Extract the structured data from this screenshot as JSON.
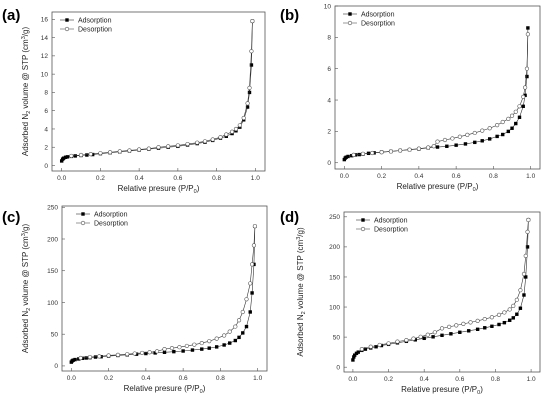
{
  "chart_data": [
    {
      "type": "scatter",
      "panel_label": "(a)",
      "xlabel_main": "Relative presure (P/P",
      "xlabel_sub": "0",
      "xlabel_end": ")",
      "ylabel_main": "Adsorbed N",
      "ylabel_sub": "2",
      "ylabel_mid": " volume @ STP (cm",
      "ylabel_sup": "3",
      "ylabel_end": "/g)",
      "xlim": [
        -0.05,
        1.05
      ],
      "ylim": [
        -0.6,
        16.8
      ],
      "xticks": [
        "0.0",
        "0.2",
        "0.4",
        "0.6",
        "0.8",
        "1.0"
      ],
      "xtick_values": [
        0,
        0.2,
        0.4,
        0.6,
        0.8,
        1.0
      ],
      "yticks": [
        "0",
        "2",
        "4",
        "6",
        "8",
        "10",
        "12",
        "14",
        "16"
      ],
      "ytick_values": [
        0,
        2,
        4,
        6,
        8,
        10,
        12,
        14,
        16
      ],
      "legend": "top-left",
      "series": [
        {
          "name": "Adsorption",
          "marker": "filled-square",
          "x": [
            0.0,
            0.005,
            0.01,
            0.02,
            0.03,
            0.05,
            0.07,
            0.1,
            0.13,
            0.16,
            0.2,
            0.25,
            0.3,
            0.35,
            0.4,
            0.45,
            0.5,
            0.55,
            0.6,
            0.65,
            0.7,
            0.74,
            0.78,
            0.82,
            0.85,
            0.88,
            0.9,
            0.92,
            0.94,
            0.96,
            0.97,
            0.98,
            0.985
          ],
          "y": [
            0.5,
            0.7,
            0.8,
            0.9,
            0.95,
            1.0,
            1.05,
            1.1,
            1.15,
            1.2,
            1.3,
            1.4,
            1.5,
            1.6,
            1.7,
            1.8,
            1.9,
            2.0,
            2.1,
            2.25,
            2.4,
            2.55,
            2.75,
            3.0,
            3.2,
            3.5,
            3.8,
            4.2,
            5.0,
            6.4,
            8.0,
            11.0,
            15.8
          ]
        },
        {
          "name": "Desorption",
          "marker": "open-circle",
          "x": [
            0.985,
            0.98,
            0.97,
            0.96,
            0.94,
            0.92,
            0.9,
            0.88,
            0.85,
            0.82,
            0.78,
            0.74,
            0.7,
            0.65,
            0.6,
            0.55,
            0.5,
            0.45,
            0.4,
            0.35,
            0.3,
            0.25,
            0.2,
            0.15,
            0.1,
            0.05
          ],
          "y": [
            15.8,
            12.5,
            8.5,
            6.8,
            5.2,
            4.4,
            4.0,
            3.7,
            3.4,
            3.1,
            2.85,
            2.65,
            2.5,
            2.35,
            2.2,
            2.1,
            2.0,
            1.85,
            1.75,
            1.65,
            1.55,
            1.45,
            1.35,
            1.25,
            1.15,
            1.05
          ]
        }
      ]
    },
    {
      "type": "scatter",
      "panel_label": "(b)",
      "xlabel_main": "Relative presure (P/P",
      "xlabel_sub": "0",
      "xlabel_end": ")",
      "ylabel_main": "",
      "ylabel_sub": "",
      "ylabel_mid": "",
      "ylabel_sup": "",
      "ylabel_end": "",
      "xlim": [
        -0.05,
        1.05
      ],
      "ylim": [
        -0.4,
        10.0
      ],
      "xticks": [
        "0.0",
        "0.2",
        "0.4",
        "0.6",
        "0.8",
        "1.0"
      ],
      "xtick_values": [
        0,
        0.2,
        0.4,
        0.6,
        0.8,
        1.0
      ],
      "yticks": [
        "0",
        "2",
        "4",
        "6",
        "8",
        "10"
      ],
      "ytick_values": [
        0,
        2,
        4,
        6,
        8,
        10
      ],
      "legend": "top-left",
      "series": [
        {
          "name": "Adsorption",
          "marker": "filled-square",
          "x": [
            0.0,
            0.005,
            0.01,
            0.02,
            0.04,
            0.06,
            0.08,
            0.1,
            0.13,
            0.16,
            0.2,
            0.25,
            0.3,
            0.35,
            0.4,
            0.45,
            0.5,
            0.55,
            0.6,
            0.65,
            0.7,
            0.74,
            0.78,
            0.82,
            0.85,
            0.88,
            0.9,
            0.92,
            0.94,
            0.96,
            0.97,
            0.98,
            0.985
          ],
          "y": [
            0.2,
            0.3,
            0.35,
            0.4,
            0.45,
            0.5,
            0.52,
            0.55,
            0.6,
            0.63,
            0.68,
            0.72,
            0.78,
            0.83,
            0.88,
            0.95,
            1.0,
            1.05,
            1.12,
            1.2,
            1.3,
            1.4,
            1.52,
            1.68,
            1.8,
            2.0,
            2.2,
            2.5,
            2.9,
            3.6,
            4.3,
            5.5,
            8.6
          ]
        },
        {
          "name": "Desorption",
          "marker": "open-circle",
          "x": [
            0.985,
            0.98,
            0.97,
            0.96,
            0.94,
            0.92,
            0.9,
            0.88,
            0.85,
            0.82,
            0.78,
            0.74,
            0.7,
            0.66,
            0.62,
            0.58,
            0.54,
            0.5,
            0.48,
            0.45,
            0.4,
            0.35,
            0.3,
            0.25,
            0.2,
            0.15,
            0.1,
            0.05
          ],
          "y": [
            8.2,
            6.0,
            4.8,
            4.2,
            3.6,
            3.25,
            3.0,
            2.8,
            2.6,
            2.4,
            2.2,
            2.05,
            1.9,
            1.78,
            1.66,
            1.55,
            1.45,
            1.35,
            1.05,
            0.97,
            0.9,
            0.84,
            0.78,
            0.72,
            0.67,
            0.62,
            0.57,
            0.5
          ]
        }
      ]
    },
    {
      "type": "scatter",
      "panel_label": "(c)",
      "xlabel_main": "Relative presure (P/P",
      "xlabel_sub": "0",
      "xlabel_end": ")",
      "ylabel_main": "Adsorbed N",
      "ylabel_sub": "2",
      "ylabel_mid": " volume @ STP (cm",
      "ylabel_sup": "3",
      "ylabel_end": "/g)",
      "xlim": [
        -0.05,
        1.05
      ],
      "ylim": [
        -8,
        252
      ],
      "xticks": [
        "0.0",
        "0.2",
        "0.4",
        "0.6",
        "0.8",
        "1.0"
      ],
      "xtick_values": [
        0,
        0.2,
        0.4,
        0.6,
        0.8,
        1.0
      ],
      "yticks": [
        "0",
        "50",
        "100",
        "150",
        "200",
        "250"
      ],
      "ytick_values": [
        0,
        50,
        100,
        150,
        200,
        250
      ],
      "legend": "top-left",
      "series": [
        {
          "name": "Adsorption",
          "marker": "filled-square",
          "x": [
            0.0,
            0.005,
            0.01,
            0.02,
            0.04,
            0.06,
            0.08,
            0.1,
            0.13,
            0.16,
            0.2,
            0.25,
            0.3,
            0.35,
            0.4,
            0.45,
            0.5,
            0.55,
            0.6,
            0.65,
            0.7,
            0.74,
            0.78,
            0.82,
            0.85,
            0.88,
            0.9,
            0.92,
            0.94,
            0.96,
            0.97,
            0.98,
            0.985
          ],
          "y": [
            6,
            8,
            9,
            10,
            11,
            12,
            12.5,
            13,
            14,
            14.5,
            15.5,
            16.5,
            17.5,
            18.5,
            19.5,
            20.5,
            21.5,
            22.5,
            23.5,
            25,
            26.5,
            28,
            30,
            33,
            36,
            40,
            45,
            52,
            62,
            85,
            115,
            160,
            220
          ]
        },
        {
          "name": "Desorption",
          "marker": "open-circle",
          "x": [
            0.985,
            0.98,
            0.97,
            0.96,
            0.94,
            0.92,
            0.9,
            0.88,
            0.85,
            0.82,
            0.78,
            0.74,
            0.7,
            0.66,
            0.62,
            0.58,
            0.54,
            0.5,
            0.46,
            0.42,
            0.38,
            0.34,
            0.3,
            0.25,
            0.2,
            0.15,
            0.1,
            0.05
          ],
          "y": [
            220,
            190,
            160,
            130,
            105,
            85,
            72,
            62,
            54,
            48,
            43,
            39,
            36,
            33.5,
            31.5,
            29.5,
            28,
            26.5,
            23,
            21.5,
            20.5,
            19.5,
            18.5,
            17.5,
            16.5,
            15,
            14,
            12.5
          ]
        }
      ]
    },
    {
      "type": "scatter",
      "panel_label": "(d)",
      "xlabel_main": "Relative presure (P/P",
      "xlabel_sub": "0",
      "xlabel_end": ")",
      "ylabel_main": "Adsorbed N",
      "ylabel_sub": "2",
      "ylabel_mid": " volume @ STP (cm",
      "ylabel_sup": "3",
      "ylabel_end": "/g)",
      "xlim": [
        -0.05,
        1.05
      ],
      "ylim": [
        -8,
        258
      ],
      "xticks": [
        "0.0",
        "0.2",
        "0.4",
        "0.6",
        "0.8",
        "1.0"
      ],
      "xtick_values": [
        0,
        0.2,
        0.4,
        0.6,
        0.8,
        1.0
      ],
      "yticks": [
        "0",
        "50",
        "100",
        "150",
        "200",
        "250"
      ],
      "ytick_values": [
        0,
        50,
        100,
        150,
        200,
        250
      ],
      "legend": "top-left",
      "series": [
        {
          "name": "Adsorption",
          "marker": "filled-square",
          "x": [
            0.0,
            0.005,
            0.01,
            0.02,
            0.03,
            0.05,
            0.07,
            0.1,
            0.13,
            0.16,
            0.2,
            0.25,
            0.3,
            0.35,
            0.4,
            0.45,
            0.5,
            0.55,
            0.6,
            0.65,
            0.7,
            0.74,
            0.78,
            0.82,
            0.85,
            0.88,
            0.9,
            0.92,
            0.94,
            0.96,
            0.97,
            0.98,
            0.985
          ],
          "y": [
            12,
            17,
            20,
            23,
            25,
            28,
            30,
            32,
            34,
            36,
            38,
            40.5,
            43,
            45.5,
            48,
            50.5,
            53,
            55.5,
            58,
            60.5,
            63,
            65.5,
            68,
            71,
            74,
            78,
            82,
            88,
            98,
            120,
            150,
            200,
            245
          ]
        },
        {
          "name": "Desorption",
          "marker": "open-circle",
          "x": [
            0.985,
            0.98,
            0.97,
            0.96,
            0.94,
            0.92,
            0.9,
            0.88,
            0.85,
            0.82,
            0.78,
            0.74,
            0.7,
            0.66,
            0.62,
            0.58,
            0.54,
            0.5,
            0.46,
            0.42,
            0.38,
            0.34,
            0.3,
            0.25,
            0.2,
            0.15,
            0.1,
            0.05
          ],
          "y": [
            245,
            225,
            185,
            155,
            128,
            112,
            102,
            96,
            91,
            87,
            83,
            80,
            77,
            74.5,
            72,
            69.5,
            67,
            64.5,
            58,
            54,
            50.5,
            47.5,
            45,
            42.5,
            39.5,
            37,
            34,
            30
          ]
        }
      ]
    }
  ],
  "legend_labels": {
    "adsorption": "Adsorption",
    "desorption": "Desorption"
  }
}
